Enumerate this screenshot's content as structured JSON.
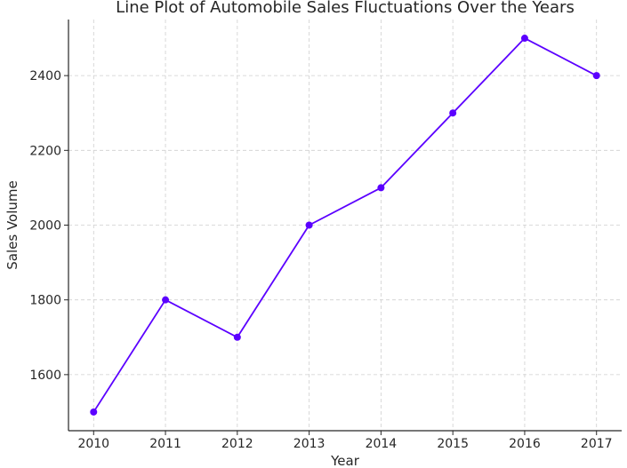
{
  "chart_data": {
    "type": "line",
    "title": "Line Plot of Automobile Sales Fluctuations Over the Years",
    "xlabel": "Year",
    "ylabel": "Sales Volume",
    "x": [
      2010,
      2011,
      2012,
      2013,
      2014,
      2015,
      2016,
      2017
    ],
    "series": [
      {
        "values": [
          1500,
          1800,
          1700,
          2000,
          2100,
          2300,
          2500,
          2400
        ],
        "color": "#5b00ff",
        "marker": "circle"
      }
    ],
    "xlim": [
      2009.65,
      2017.35
    ],
    "ylim": [
      1450,
      2550
    ],
    "yticks": [
      1600,
      1800,
      2000,
      2200,
      2400
    ],
    "grid": true,
    "legend": "none"
  }
}
